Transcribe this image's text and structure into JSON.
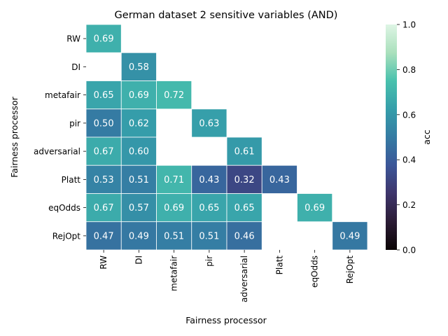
{
  "chart_data": {
    "type": "heatmap",
    "title": "German dataset 2 sensitive variables (AND)",
    "xlabel": "Fairness processor",
    "ylabel": "Fairness processor",
    "x_categories": [
      "RW",
      "DI",
      "metafair",
      "pir",
      "adversarial",
      "Platt",
      "eqOdds",
      "RejOpt"
    ],
    "y_categories": [
      "RW",
      "DI",
      "metafair",
      "pir",
      "adversarial",
      "Platt",
      "eqOdds",
      "RejOpt"
    ],
    "values": [
      [
        0.69,
        null,
        null,
        null,
        null,
        null,
        null,
        null
      ],
      [
        null,
        0.58,
        null,
        null,
        null,
        null,
        null,
        null
      ],
      [
        0.65,
        0.69,
        0.72,
        null,
        null,
        null,
        null,
        null
      ],
      [
        0.5,
        0.62,
        null,
        0.63,
        null,
        null,
        null,
        null
      ],
      [
        0.67,
        0.6,
        null,
        null,
        0.61,
        null,
        null,
        null
      ],
      [
        0.53,
        0.51,
        0.71,
        0.43,
        0.32,
        0.43,
        null,
        null
      ],
      [
        0.67,
        0.57,
        0.69,
        0.65,
        0.65,
        null,
        0.69,
        null
      ],
      [
        0.47,
        0.49,
        0.51,
        0.51,
        0.46,
        null,
        null,
        0.49
      ]
    ],
    "value_labels": [
      [
        "0.69",
        "",
        "",
        "",
        "",
        "",
        "",
        ""
      ],
      [
        "",
        "0.58",
        "",
        "",
        "",
        "",
        "",
        ""
      ],
      [
        "0.65",
        "0.69",
        "0.72",
        "",
        "",
        "",
        "",
        ""
      ],
      [
        "0.50",
        "0.62",
        "",
        "0.63",
        "",
        "",
        "",
        ""
      ],
      [
        "0.67",
        "0.60",
        "",
        "",
        "0.61",
        "",
        "",
        ""
      ],
      [
        "0.53",
        "0.51",
        "0.71",
        "0.43",
        "0.32",
        "0.43",
        "",
        ""
      ],
      [
        "0.67",
        "0.57",
        "0.69",
        "0.65",
        "0.65",
        "",
        "0.69",
        ""
      ],
      [
        "0.47",
        "0.49",
        "0.51",
        "0.51",
        "0.46",
        "",
        "",
        "0.49"
      ]
    ],
    "colorbar": {
      "label": "acc",
      "range": [
        0.0,
        1.0
      ],
      "ticks": [
        0.0,
        0.2,
        0.4,
        0.6,
        0.8,
        1.0
      ],
      "tick_labels": [
        "0.0",
        "0.2",
        "0.4",
        "0.6",
        "0.8",
        "1.0"
      ],
      "colormap": "mako"
    }
  }
}
